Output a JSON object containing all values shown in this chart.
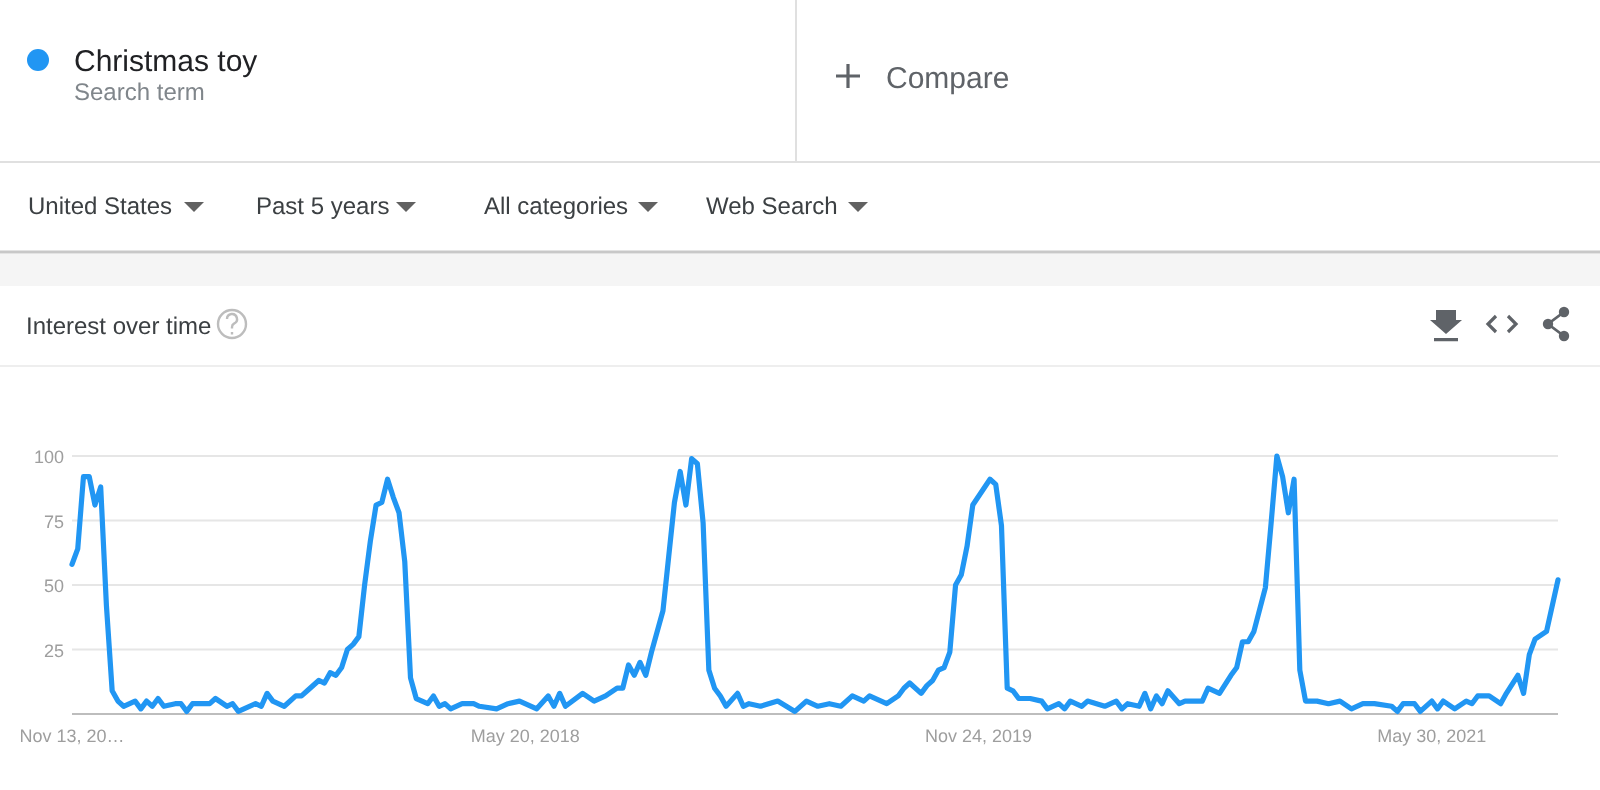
{
  "chart_data": {
    "type": "line",
    "title": "Interest over time",
    "annotations": [
      "Search term",
      "Compare",
      "United States",
      "Past 5 years",
      "All categories",
      "Web Search"
    ],
    "legend": "top left",
    "grid": "y",
    "marker": "none",
    "line_style": "solid",
    "xlim": [
      "2016-11-13",
      "2021-10-31"
    ],
    "xticks": [
      {
        "value": "2016-11-13",
        "label": "Nov 13, 20…"
      },
      {
        "value": "2018-05-20",
        "label": "May 20, 2018"
      },
      {
        "value": "2019-11-24",
        "label": "Nov 24, 2019"
      },
      {
        "value": "2021-05-30",
        "label": "May 30, 2021"
      }
    ],
    "ylim": [
      0,
      100
    ],
    "yticks": [
      25,
      50,
      75,
      100
    ],
    "series": [
      {
        "name": "Christmas toy",
        "color": "#2196f3",
        "x": [
          "2016-11-13",
          "2016-11-20",
          "2016-11-27",
          "2016-12-04",
          "2016-12-11",
          "2016-12-18",
          "2016-12-25",
          "2017-01-01",
          "2017-01-08",
          "2017-01-15",
          "2017-01-29",
          "2017-02-05",
          "2017-02-12",
          "2017-02-19",
          "2017-02-26",
          "2017-03-05",
          "2017-03-19",
          "2017-03-26",
          "2017-04-02",
          "2017-04-09",
          "2017-04-30",
          "2017-05-07",
          "2017-05-21",
          "2017-05-28",
          "2017-06-04",
          "2017-06-25",
          "2017-07-02",
          "2017-07-09",
          "2017-07-16",
          "2017-07-30",
          "2017-08-13",
          "2017-08-20",
          "2017-08-27",
          "2017-09-10",
          "2017-09-17",
          "2017-09-24",
          "2017-10-01",
          "2017-10-08",
          "2017-10-15",
          "2017-10-22",
          "2017-10-29",
          "2017-11-05",
          "2017-11-12",
          "2017-11-19",
          "2017-11-26",
          "2017-12-03",
          "2017-12-10",
          "2017-12-17",
          "2017-12-24",
          "2017-12-31",
          "2018-01-07",
          "2018-01-14",
          "2018-01-21",
          "2018-01-28",
          "2018-02-04",
          "2018-02-11",
          "2018-02-18",
          "2018-03-04",
          "2018-03-18",
          "2018-03-25",
          "2018-04-15",
          "2018-04-29",
          "2018-05-13",
          "2018-06-03",
          "2018-06-17",
          "2018-06-24",
          "2018-07-01",
          "2018-07-08",
          "2018-07-29",
          "2018-08-12",
          "2018-08-26",
          "2018-09-09",
          "2018-09-16",
          "2018-09-23",
          "2018-09-30",
          "2018-10-07",
          "2018-10-14",
          "2018-10-21",
          "2018-11-04",
          "2018-11-11",
          "2018-11-18",
          "2018-11-25",
          "2018-12-02",
          "2018-12-09",
          "2018-12-16",
          "2018-12-23",
          "2018-12-30",
          "2019-01-06",
          "2019-01-13",
          "2019-01-20",
          "2019-02-03",
          "2019-02-10",
          "2019-02-17",
          "2019-03-03",
          "2019-03-24",
          "2019-04-14",
          "2019-04-28",
          "2019-05-12",
          "2019-05-26",
          "2019-06-09",
          "2019-06-23",
          "2019-07-07",
          "2019-07-14",
          "2019-08-04",
          "2019-08-18",
          "2019-08-25",
          "2019-09-01",
          "2019-09-15",
          "2019-09-22",
          "2019-09-29",
          "2019-10-06",
          "2019-10-13",
          "2019-10-20",
          "2019-10-27",
          "2019-11-03",
          "2019-11-10",
          "2019-11-17",
          "2019-12-08",
          "2019-12-15",
          "2019-12-22",
          "2019-12-29",
          "2020-01-05",
          "2020-01-12",
          "2020-01-26",
          "2020-02-09",
          "2020-02-16",
          "2020-03-01",
          "2020-03-08",
          "2020-03-15",
          "2020-03-29",
          "2020-04-05",
          "2020-04-26",
          "2020-05-10",
          "2020-05-17",
          "2020-05-24",
          "2020-06-07",
          "2020-06-14",
          "2020-06-21",
          "2020-06-28",
          "2020-07-05",
          "2020-07-12",
          "2020-07-26",
          "2020-08-02",
          "2020-08-23",
          "2020-08-30",
          "2020-09-13",
          "2020-09-27",
          "2020-10-04",
          "2020-10-11",
          "2020-10-18",
          "2020-10-25",
          "2020-11-08",
          "2020-11-15",
          "2020-11-22",
          "2020-11-29",
          "2020-12-06",
          "2020-12-13",
          "2020-12-20",
          "2020-12-27",
          "2021-01-10",
          "2021-01-24",
          "2021-02-07",
          "2021-02-21",
          "2021-03-07",
          "2021-03-21",
          "2021-04-11",
          "2021-04-18",
          "2021-04-25",
          "2021-05-09",
          "2021-05-16",
          "2021-05-30",
          "2021-06-06",
          "2021-06-13",
          "2021-06-27",
          "2021-07-11",
          "2021-07-18",
          "2021-07-25",
          "2021-08-08",
          "2021-08-22",
          "2021-08-29",
          "2021-09-12",
          "2021-09-19",
          "2021-09-26",
          "2021-10-03",
          "2021-10-17",
          "2021-10-31"
        ],
        "values": [
          58,
          64,
          92,
          92,
          81,
          88,
          42,
          9,
          5,
          3,
          5,
          2,
          5,
          3,
          6,
          3,
          4,
          4,
          1,
          4,
          4,
          6,
          3,
          4,
          1,
          4,
          3,
          8,
          5,
          3,
          7,
          7,
          9,
          13,
          12,
          16,
          15,
          18,
          25,
          27,
          30,
          50,
          67,
          81,
          82,
          91,
          84,
          78,
          59,
          14,
          6,
          5,
          4,
          7,
          3,
          4,
          2,
          4,
          4,
          3,
          2,
          4,
          5,
          2,
          7,
          3,
          8,
          3,
          8,
          5,
          7,
          10,
          10,
          19,
          15,
          20,
          15,
          24,
          40,
          61,
          82,
          94,
          81,
          99,
          97,
          74,
          17,
          10,
          7,
          3,
          8,
          3,
          4,
          3,
          5,
          1,
          5,
          3,
          4,
          3,
          7,
          5,
          7,
          4,
          7,
          10,
          12,
          8,
          11,
          13,
          17,
          18,
          24,
          50,
          54,
          65,
          81,
          91,
          89,
          73,
          10,
          9,
          6,
          6,
          5,
          2,
          4,
          2,
          5,
          3,
          5,
          3,
          5,
          2,
          4,
          3,
          8,
          2,
          7,
          4,
          9,
          4,
          5,
          5,
          10,
          8,
          15,
          18,
          28,
          28,
          32,
          49,
          74,
          100,
          92,
          78,
          91,
          17,
          5,
          5,
          4,
          5,
          2,
          4,
          4,
          3,
          1,
          4,
          4,
          1,
          5,
          2,
          5,
          2,
          5,
          4,
          7,
          7,
          4,
          8,
          15,
          8,
          23,
          29,
          32,
          52
        ]
      }
    ]
  }
}
